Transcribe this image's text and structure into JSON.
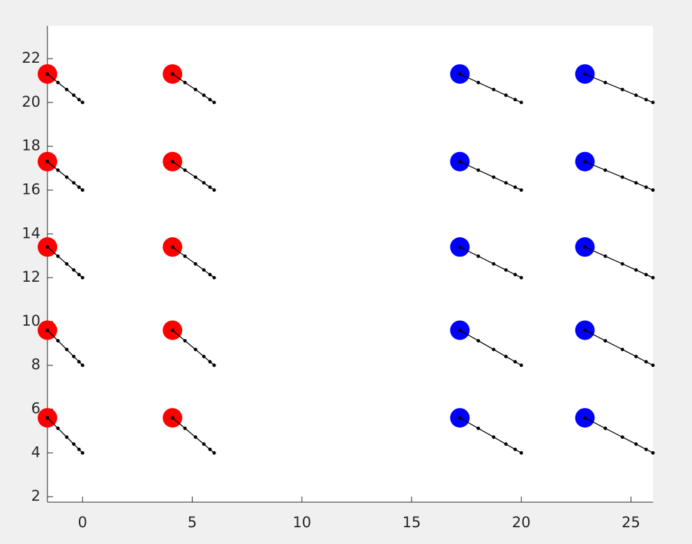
{
  "chart_data": {
    "type": "scatter",
    "xlim": [
      -1.6,
      26
    ],
    "ylim": [
      1.75,
      23.5
    ],
    "xticks": [
      0,
      5,
      10,
      15,
      20,
      25
    ],
    "yticks": [
      2,
      4,
      6,
      8,
      10,
      12,
      14,
      16,
      18,
      20,
      22
    ],
    "series": [
      {
        "mode": "circles",
        "color": "#ff0000",
        "x": [
          -1.6,
          -1.6,
          -1.6,
          -1.6,
          -1.6,
          4.1,
          4.1,
          4.1,
          4.1,
          4.1
        ],
        "y": [
          21.3,
          17.3,
          13.4,
          9.6,
          5.6,
          21.3,
          17.3,
          13.4,
          9.6,
          5.6
        ]
      },
      {
        "mode": "circles",
        "color": "#0000ff",
        "x": [
          17.2,
          17.2,
          17.2,
          17.2,
          17.2,
          22.9,
          22.9,
          22.9,
          22.9,
          22.9
        ],
        "y": [
          21.3,
          17.3,
          13.4,
          9.6,
          5.6,
          21.3,
          17.3,
          13.4,
          9.6,
          5.6
        ]
      },
      {
        "mode": "lines+markers",
        "color": "#000000",
        "x": [
          -1.6,
          -1.12,
          -0.72,
          -0.4,
          -0.16,
          0
        ],
        "y": [
          21.3,
          20.91,
          20.59,
          20.33,
          20.13,
          20
        ]
      },
      {
        "mode": "lines+markers",
        "color": "#000000",
        "x": [
          -1.6,
          -1.12,
          -0.72,
          -0.4,
          -0.16,
          0
        ],
        "y": [
          17.3,
          16.91,
          16.59,
          16.33,
          16.13,
          16
        ]
      },
      {
        "mode": "lines+markers",
        "color": "#000000",
        "x": [
          -1.6,
          -1.12,
          -0.72,
          -0.4,
          -0.16,
          0
        ],
        "y": [
          13.4,
          12.98,
          12.63,
          12.35,
          12.14,
          12
        ]
      },
      {
        "mode": "lines+markers",
        "color": "#000000",
        "x": [
          -1.6,
          -1.12,
          -0.72,
          -0.4,
          -0.16,
          0
        ],
        "y": [
          9.6,
          9.12,
          8.72,
          8.4,
          8.16,
          8
        ]
      },
      {
        "mode": "lines+markers",
        "color": "#000000",
        "x": [
          -1.6,
          -1.12,
          -0.72,
          -0.4,
          -0.16,
          0
        ],
        "y": [
          5.6,
          5.12,
          4.72,
          4.4,
          4.16,
          4
        ]
      },
      {
        "mode": "lines+markers",
        "color": "#000000",
        "x": [
          4.1,
          4.67,
          5.15,
          5.53,
          5.81,
          6
        ],
        "y": [
          21.3,
          20.91,
          20.59,
          20.33,
          20.13,
          20
        ]
      },
      {
        "mode": "lines+markers",
        "color": "#000000",
        "x": [
          4.1,
          4.67,
          5.15,
          5.53,
          5.81,
          6
        ],
        "y": [
          17.3,
          16.91,
          16.59,
          16.33,
          16.13,
          16
        ]
      },
      {
        "mode": "lines+markers",
        "color": "#000000",
        "x": [
          4.1,
          4.67,
          5.15,
          5.53,
          5.81,
          6
        ],
        "y": [
          13.4,
          12.98,
          12.63,
          12.35,
          12.14,
          12
        ]
      },
      {
        "mode": "lines+markers",
        "color": "#000000",
        "x": [
          4.1,
          4.67,
          5.15,
          5.53,
          5.81,
          6
        ],
        "y": [
          9.6,
          9.12,
          8.72,
          8.4,
          8.16,
          8
        ]
      },
      {
        "mode": "lines+markers",
        "color": "#000000",
        "x": [
          4.1,
          4.67,
          5.15,
          5.53,
          5.81,
          6
        ],
        "y": [
          5.6,
          5.12,
          4.72,
          4.4,
          4.16,
          4
        ]
      },
      {
        "mode": "lines+markers",
        "color": "#000000",
        "x": [
          17.2,
          18.04,
          18.74,
          19.3,
          19.72,
          20
        ],
        "y": [
          21.3,
          20.91,
          20.59,
          20.33,
          20.13,
          20
        ]
      },
      {
        "mode": "lines+markers",
        "color": "#000000",
        "x": [
          17.2,
          18.04,
          18.74,
          19.3,
          19.72,
          20
        ],
        "y": [
          17.3,
          16.91,
          16.59,
          16.33,
          16.13,
          16
        ]
      },
      {
        "mode": "lines+markers",
        "color": "#000000",
        "x": [
          17.2,
          18.04,
          18.74,
          19.3,
          19.72,
          20
        ],
        "y": [
          13.4,
          12.98,
          12.63,
          12.35,
          12.14,
          12
        ]
      },
      {
        "mode": "lines+markers",
        "color": "#000000",
        "x": [
          17.2,
          18.04,
          18.74,
          19.3,
          19.72,
          20
        ],
        "y": [
          9.6,
          9.12,
          8.72,
          8.4,
          8.16,
          8
        ]
      },
      {
        "mode": "lines+markers",
        "color": "#000000",
        "x": [
          17.2,
          18.04,
          18.74,
          19.3,
          19.72,
          20
        ],
        "y": [
          5.6,
          5.12,
          4.72,
          4.4,
          4.16,
          4
        ]
      },
      {
        "mode": "lines+markers",
        "color": "#000000",
        "x": [
          22.9,
          23.83,
          24.61,
          25.23,
          25.69,
          26
        ],
        "y": [
          21.3,
          20.91,
          20.59,
          20.33,
          20.13,
          20
        ]
      },
      {
        "mode": "lines+markers",
        "color": "#000000",
        "x": [
          22.9,
          23.83,
          24.61,
          25.23,
          25.69,
          26
        ],
        "y": [
          17.3,
          16.91,
          16.59,
          16.33,
          16.13,
          16
        ]
      },
      {
        "mode": "lines+markers",
        "color": "#000000",
        "x": [
          22.9,
          23.83,
          24.61,
          25.23,
          25.69,
          26
        ],
        "y": [
          13.4,
          12.98,
          12.63,
          12.35,
          12.14,
          12
        ]
      },
      {
        "mode": "lines+markers",
        "color": "#000000",
        "x": [
          22.9,
          23.83,
          24.61,
          25.23,
          25.69,
          26
        ],
        "y": [
          9.6,
          9.12,
          8.72,
          8.4,
          8.16,
          8
        ]
      },
      {
        "mode": "lines+markers",
        "color": "#000000",
        "x": [
          22.9,
          23.83,
          24.61,
          25.23,
          25.69,
          26
        ],
        "y": [
          5.6,
          5.12,
          4.72,
          4.4,
          4.16,
          4
        ]
      }
    ]
  }
}
